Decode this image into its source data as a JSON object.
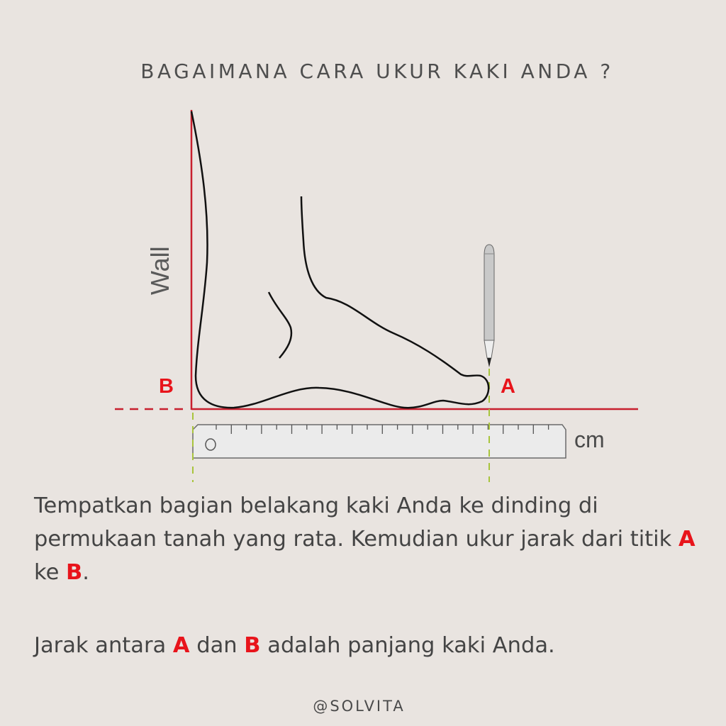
{
  "title": "BAGAIMANA CARA UKUR KAKI ANDA ?",
  "diagram": {
    "wall_label": "Wall",
    "point_b": "B",
    "point_a": "A",
    "unit_label": "cm",
    "colors": {
      "wall_floor_line": "#c8202e",
      "points": "#e8141b",
      "guide_dash": "#a8c43c",
      "ruler_fill": "#ebebeb"
    }
  },
  "instructions": {
    "p1_text": "Tempatkan bagian belakang kaki Anda ke dinding di permukaan tanah yang rata. Kemudian ukur jarak dari titik",
    "p1_a": "A",
    "p1_mid": "ke",
    "p1_b": "B",
    "p1_end": ".",
    "p2_start": "Jarak antara",
    "p2_a": "A",
    "p2_mid": "dan",
    "p2_b": "B",
    "p2_end": "adalah panjang kaki Anda."
  },
  "footer": "@SOLVITA"
}
